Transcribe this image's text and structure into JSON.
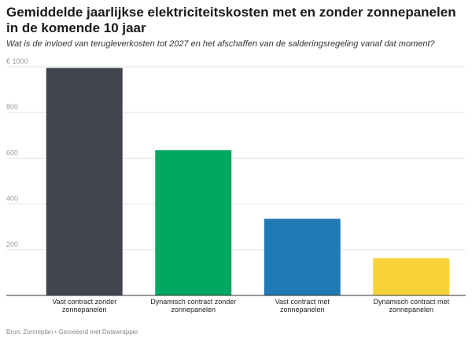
{
  "header": {
    "title": "Gemiddelde jaarlijkse elektriciteitskosten met en zonder zonnepanelen in de komende 10 jaar",
    "subtitle": "Wat is de invloed van terugleverkosten tot 2027 en het afschaffen van de salderingsregeling vanaf dat moment?"
  },
  "footer": {
    "source": "Bron: Zonneplan • Gecreëerd met Datawrapper"
  },
  "chart_data": {
    "type": "bar",
    "title": "Gemiddelde jaarlijkse elektriciteitskosten met en zonder zonnepanelen in de komende 10 jaar",
    "subtitle": "Wat is de invloed van terugleverkosten tot 2027 en het afschaffen van de salderingsregeling vanaf dat moment?",
    "categories": [
      [
        "Vast contract zonder",
        "zonnepanelen"
      ],
      [
        "Dynamisch contract zonder",
        "zonnepanelen"
      ],
      [
        "Vast contract met",
        "zonnepanelen"
      ],
      [
        "Dynamisch contract met",
        "zonnepanelen"
      ]
    ],
    "values": [
      995,
      635,
      335,
      163
    ],
    "colors": [
      "#40444c",
      "#00a862",
      "#1f7ab5",
      "#f6d238"
    ],
    "ylim": [
      0,
      1000
    ],
    "yticks": [
      200,
      400,
      600,
      800,
      1000
    ],
    "ytick_labels": [
      "200",
      "400",
      "600",
      "800",
      "€ 1000"
    ],
    "xlabel": "",
    "ylabel": "",
    "grid": true
  }
}
